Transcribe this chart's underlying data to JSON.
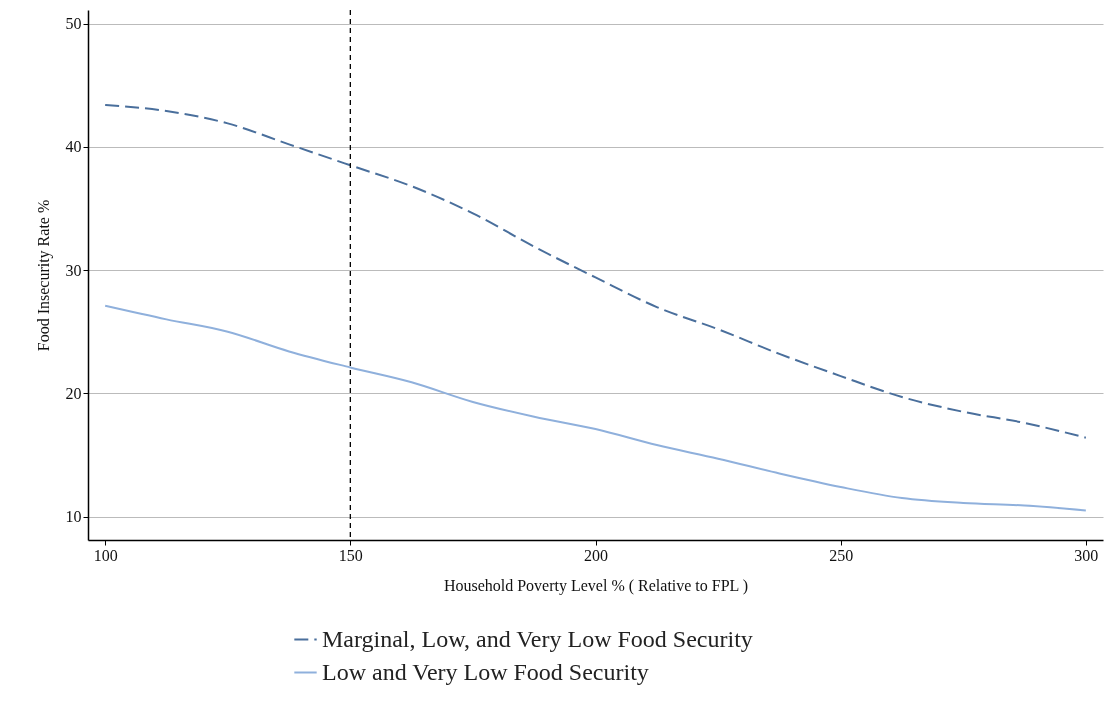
{
  "chart_data": {
    "type": "line",
    "xlabel": "Household Poverty Level % ( Relative to FPL )",
    "ylabel": "Food Insecurity Rate %",
    "xlim": [
      96.5,
      303.5
    ],
    "ylim": [
      8.1,
      51.1
    ],
    "xticks": [
      100,
      150,
      200,
      250,
      300
    ],
    "yticks": [
      10,
      20,
      30,
      40,
      50
    ],
    "grid": "y",
    "legend": "bottom",
    "marker": "none",
    "ref_lines": [
      {
        "axis": "x",
        "value": 150,
        "label": null,
        "color": "#000000",
        "line_style": "dashed"
      }
    ],
    "series": [
      {
        "name": "Marginal, Low, and Very Low Food Security",
        "color": "#4a6f9c",
        "line_style": "dashed",
        "x": [
          100,
          112.5,
          125,
          137.5,
          150,
          162.5,
          175,
          187.5,
          200,
          212.5,
          225,
          237.5,
          250,
          262.5,
          275,
          287.5,
          300
        ],
        "values": [
          43.4,
          42.9,
          41.9,
          40.2,
          38.5,
          36.8,
          34.6,
          31.9,
          29.4,
          27.0,
          25.2,
          23.2,
          21.4,
          19.7,
          18.5,
          17.6,
          16.4
        ]
      },
      {
        "name": "Low and Very Low Food Security",
        "color": "#8fb0dc",
        "line_style": "solid",
        "x": [
          100,
          112.5,
          125,
          137.5,
          150,
          162.5,
          175,
          187.5,
          200,
          212.5,
          225,
          237.5,
          250,
          262.5,
          275,
          287.5,
          300
        ],
        "values": [
          27.1,
          26.0,
          25.0,
          23.4,
          22.1,
          20.9,
          19.3,
          18.1,
          17.1,
          15.8,
          14.7,
          13.5,
          12.4,
          11.5,
          11.1,
          10.9,
          10.5
        ]
      }
    ]
  }
}
